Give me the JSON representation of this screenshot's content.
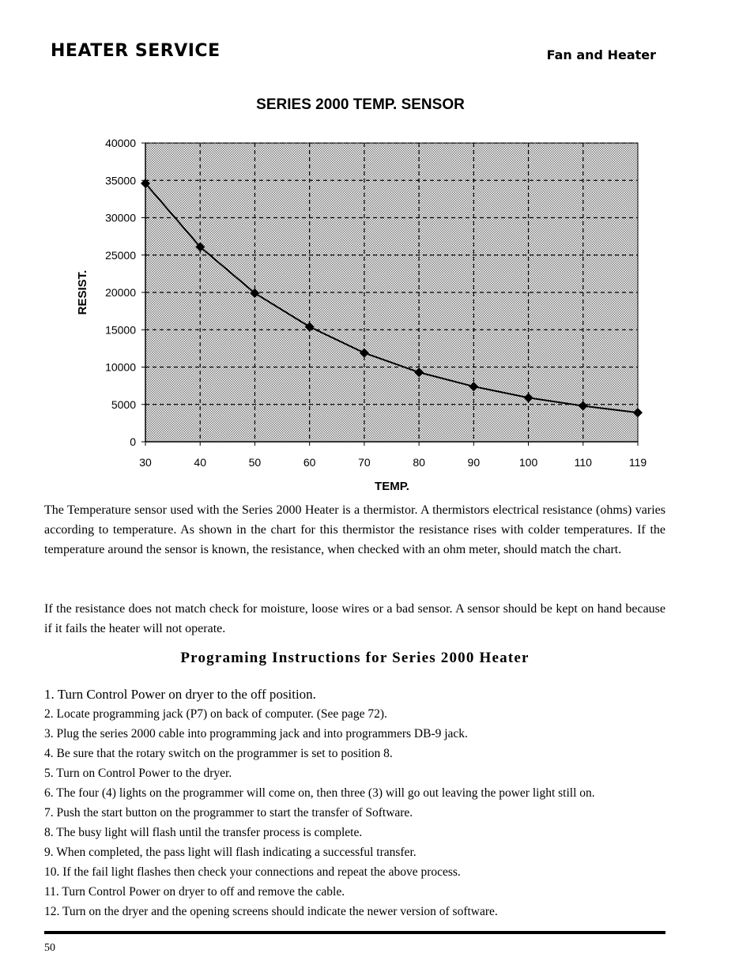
{
  "header": {
    "section_title": "HEATER SERVICE",
    "subsection_title": "Fan and Heater"
  },
  "chart_data": {
    "type": "line",
    "title": "SERIES 2000 TEMP. SENSOR",
    "xlabel": "TEMP.",
    "ylabel": "RESIST.",
    "categories": [
      "30",
      "40",
      "50",
      "60",
      "70",
      "80",
      "90",
      "100",
      "110",
      "119"
    ],
    "x": [
      30,
      40,
      50,
      60,
      70,
      80,
      90,
      100,
      110,
      119
    ],
    "series": [
      {
        "values": [
          34600,
          26100,
          19900,
          15400,
          11900,
          9300,
          7400,
          5900,
          4800,
          3900
        ]
      }
    ],
    "ylim": [
      0,
      40000
    ],
    "yticks": [
      0,
      5000,
      10000,
      15000,
      20000,
      25000,
      30000,
      35000,
      40000
    ],
    "grid": true,
    "legend": "none",
    "line_color": "#000000",
    "plot_fill": "#d9d9d9"
  },
  "body": {
    "paragraph1": "The Temperature sensor used with the Series 2000 Heater is a thermistor.  A thermistors electrical resistance (ohms) varies according to temperature.  As shown in the chart for this thermistor the resistance rises with colder temperatures.  If the temperature around the sensor is known, the resistance, when checked with an ohm meter, should match the chart.",
    "paragraph2": "If the resistance does not match check for moisture, loose wires or a bad sensor. A sensor should be kept on hand because if it fails the heater will not operate."
  },
  "instructions": {
    "title": "Programing Instructions for Series 2000 Heater",
    "steps": [
      "1.  Turn Control Power on dryer to the off position.",
      "2.  Locate programming jack (P7) on back of computer. (See page 72).",
      "3.  Plug the series 2000 cable into programming jack and into programmers DB-9 jack.",
      "4.  Be sure that the rotary switch on the programmer is set to position 8.",
      "5.  Turn on Control Power to the dryer.",
      "6.  The four (4) lights on the programmer will come on,  then three (3) will go out leaving the power light still on.",
      "7.  Push the start button on the programmer to start the transfer of Software.",
      "8.  The busy light will flash until the transfer process is complete.",
      "9.  When completed, the pass light will flash indicating a successful transfer.",
      "10.  If the fail light flashes then check your connections and repeat the above process.",
      "11.  Turn Control Power on dryer to off and remove the cable.",
      "12.  Turn on the dryer and the opening screens should indicate the newer version of software."
    ]
  },
  "footer": {
    "page_number": "50"
  }
}
